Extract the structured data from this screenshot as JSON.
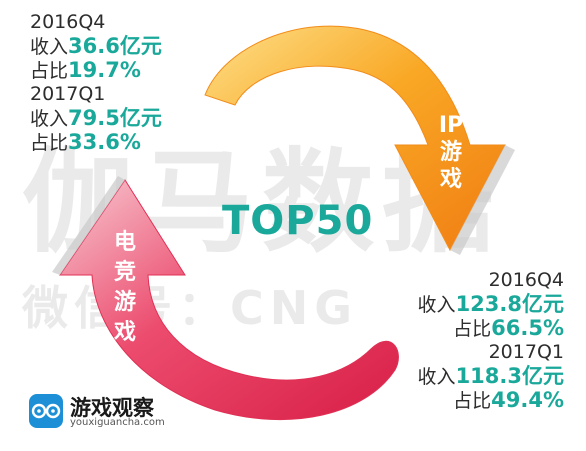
{
  "watermark": {
    "line1": "伽马数据",
    "line2": "微信号：CNG"
  },
  "left_stats": {
    "period1": "2016Q4",
    "revenue_label1": "收入",
    "revenue_value1": "36.6亿元",
    "share_label1": "占比",
    "share_value1": "19.7%",
    "period2": "2017Q1",
    "revenue_label2": "收入",
    "revenue_value2": "79.5亿元",
    "share_label2": "占比",
    "share_value2": "33.6%"
  },
  "right_stats": {
    "period1": "2016Q4",
    "revenue_label1": "收入",
    "revenue_value1": "123.8亿元",
    "share_label1": "占比",
    "share_value1": "66.5%",
    "period2": "2017Q1",
    "revenue_label2": "收入",
    "revenue_value2": "118.3亿元",
    "share_label2": "占比",
    "share_value2": "49.4%"
  },
  "center_title": "TOP50",
  "ip_arrow_label": [
    "IP",
    "游",
    "戏"
  ],
  "esports_arrow_label": [
    "电",
    "竞",
    "游",
    "戏"
  ],
  "logo": {
    "name": "游戏观察",
    "url": "youxiguancha.com"
  },
  "colors": {
    "accent_teal": "#1aa89a",
    "orange": "#f7941d",
    "pink": "#e8325a"
  }
}
